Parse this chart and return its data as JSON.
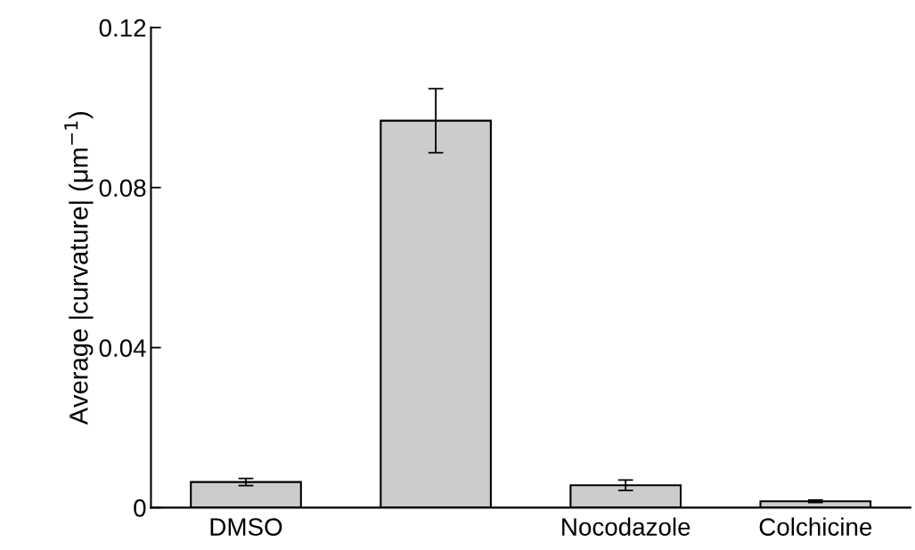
{
  "chart_data": {
    "type": "bar",
    "ylabel": "Average |curvature| (μm$^{−1}$)",
    "categories": [
      "DMSO",
      null,
      "Nocodazole",
      "Colchicine"
    ],
    "values": [
      0.0064,
      0.0967,
      0.0056,
      0.0016
    ],
    "errors": [
      0.0009,
      0.008,
      0.0013,
      0.0003
    ],
    "color": "#cccccc",
    "ylim": [
      0,
      0.12
    ],
    "yticks": [
      {
        "value": 0,
        "label": "0"
      },
      0.04,
      0.08,
      0.12
    ],
    "grid": false,
    "legend": false
  }
}
